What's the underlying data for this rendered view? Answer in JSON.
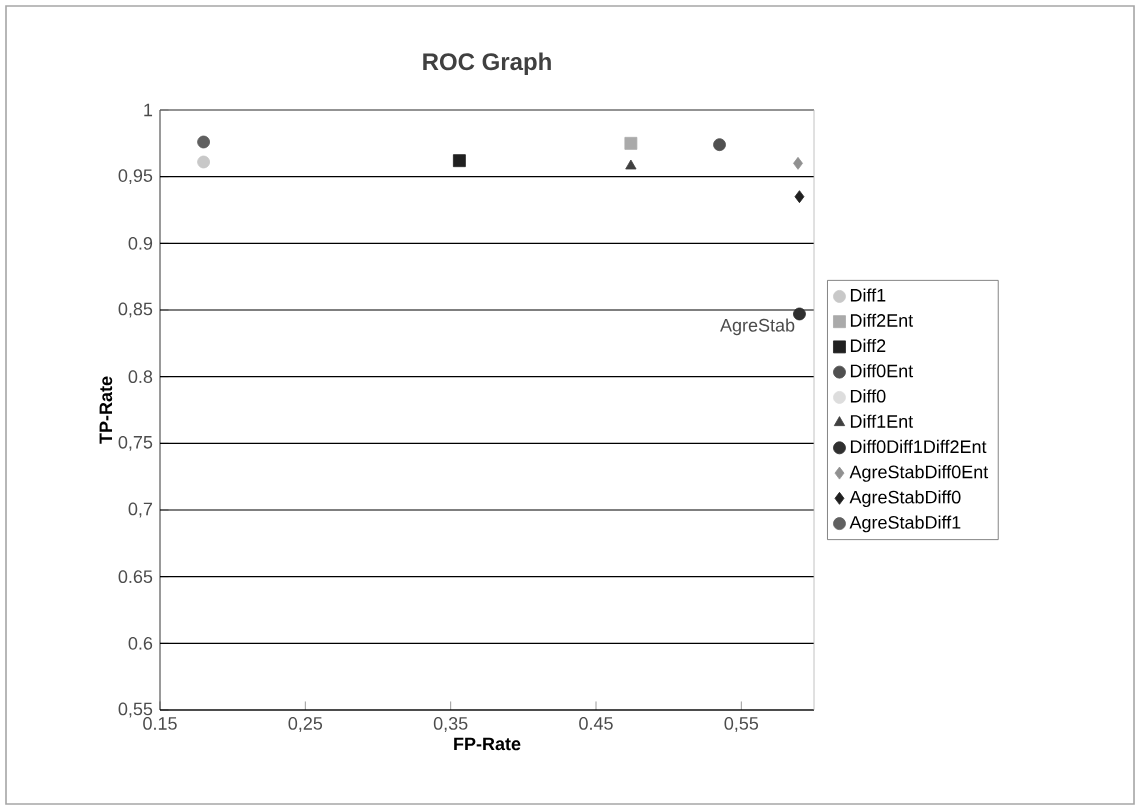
{
  "chart_data": {
    "type": "scatter",
    "title": "ROC Graph",
    "xlabel": "FP-Rate",
    "ylabel": "TP-Rate",
    "xlim": [
      0.15,
      0.6
    ],
    "xticks": [
      0.15,
      {
        "value": 0.25,
        "label": "0,25"
      },
      {
        "value": 0.35,
        "label": "0,35"
      },
      0.45,
      {
        "value": 0.55,
        "label": "0,55"
      }
    ],
    "ylim": [
      0.55,
      1
    ],
    "yticks": [
      {
        "value": 0.55,
        "label": "0,55"
      },
      0.6,
      0.65,
      {
        "value": 0.7,
        "label": "0,7"
      },
      {
        "value": 0.75,
        "label": "0,75"
      },
      0.8,
      {
        "value": 0.85,
        "label": "0,85"
      },
      0.9,
      {
        "value": 0.95,
        "label": "0,95"
      },
      1
    ],
    "grid": "y",
    "legend": "right",
    "annotations": [
      {
        "text": "AgreStab",
        "x": 0.59,
        "y": 0.847
      }
    ],
    "series": [
      {
        "name": "Diff1",
        "color": "#c8c8c8",
        "marker": "circle",
        "x": [
          0.18
        ],
        "values": [
          0.961
        ]
      },
      {
        "name": "Diff2Ent",
        "color": "#aaaaaa",
        "marker": "square",
        "x": [
          0.474
        ],
        "values": [
          0.975
        ]
      },
      {
        "name": "Diff2",
        "color": "#202020",
        "marker": "square",
        "x": [
          0.356
        ],
        "values": [
          0.962
        ]
      },
      {
        "name": "Diff0Ent",
        "color": "#505050",
        "marker": "circle",
        "x": [
          0.535
        ],
        "values": [
          0.974
        ]
      },
      {
        "name": "Diff0",
        "color": "#dddddd",
        "marker": "circle",
        "x": [
          null
        ],
        "values": [
          null
        ]
      },
      {
        "name": "Diff1Ent",
        "color": "#404040",
        "marker": "triangle",
        "x": [
          0.474
        ],
        "values": [
          0.958
        ]
      },
      {
        "name": "Diff0Diff1Diff2Ent",
        "color": "#303030",
        "marker": "circle",
        "x": [
          0.59
        ],
        "values": [
          0.847
        ]
      },
      {
        "name": "AgreStabDiff0Ent",
        "color": "#909090",
        "marker": "diamond",
        "x": [
          0.589
        ],
        "values": [
          0.96
        ]
      },
      {
        "name": "AgreStabDiff0",
        "color": "#202020",
        "marker": "diamond",
        "x": [
          0.59
        ],
        "values": [
          0.935
        ]
      },
      {
        "name": "AgreStabDiff1",
        "color": "#606060",
        "marker": "circle",
        "x": [
          0.18
        ],
        "values": [
          0.976
        ]
      }
    ]
  }
}
